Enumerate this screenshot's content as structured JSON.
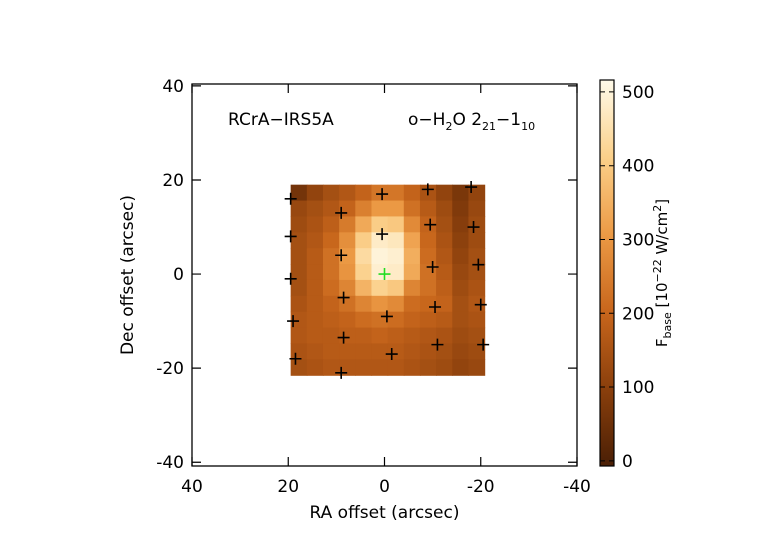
{
  "chart_data": {
    "type": "heatmap",
    "object_label": "RCrA−IRS5A",
    "line_label": {
      "species": "o−H",
      "sub1": "2",
      "mid": "O 2",
      "sub2": "21",
      "dash": "−1",
      "sub3": "10"
    },
    "xlabel": "RA offset (arcsec)",
    "ylabel": "Dec offset (arcsec)",
    "colorbar_label": {
      "main": "F",
      "sub": "base",
      "text1": " [10",
      "sup1": "−22",
      "text2": " W/cm",
      "sup2": "2",
      "text3": "]"
    },
    "xlim": [
      40,
      -40
    ],
    "ylim": [
      -40.8,
      40.4
    ],
    "xticks": [
      40,
      20,
      0,
      -20,
      -40
    ],
    "yticks": [
      -40,
      -20,
      0,
      20,
      40
    ],
    "clim": [
      -7,
      508
    ],
    "cticks": [
      0,
      100,
      200,
      300,
      400,
      500
    ],
    "colormap": [
      "#4a1f05",
      "#8a3f0c",
      "#c8661c",
      "#ec9a45",
      "#fbd08a",
      "#fffbea"
    ],
    "extent_x": [
      19.5,
      -20.8
    ],
    "extent_y": [
      19,
      -21.5
    ],
    "z": [
      [
        60,
        110,
        140,
        160,
        190,
        230,
        230,
        190,
        150,
        110,
        70,
        110
      ],
      [
        120,
        140,
        160,
        190,
        250,
        300,
        300,
        220,
        170,
        130,
        80,
        120
      ],
      [
        130,
        150,
        180,
        240,
        330,
        400,
        390,
        270,
        190,
        140,
        90,
        130
      ],
      [
        140,
        160,
        200,
        280,
        400,
        470,
        460,
        320,
        200,
        150,
        100,
        130
      ],
      [
        140,
        170,
        220,
        300,
        430,
        490,
        480,
        340,
        210,
        160,
        110,
        140
      ],
      [
        140,
        170,
        220,
        290,
        410,
        480,
        470,
        330,
        220,
        170,
        120,
        140
      ],
      [
        140,
        170,
        210,
        260,
        350,
        410,
        390,
        260,
        220,
        180,
        130,
        150
      ],
      [
        150,
        170,
        190,
        220,
        260,
        290,
        270,
        210,
        200,
        190,
        140,
        160
      ],
      [
        160,
        170,
        180,
        190,
        210,
        220,
        210,
        190,
        180,
        170,
        140,
        150
      ],
      [
        160,
        170,
        170,
        180,
        180,
        190,
        180,
        170,
        160,
        150,
        130,
        140
      ],
      [
        150,
        160,
        170,
        170,
        170,
        170,
        170,
        160,
        150,
        140,
        120,
        130
      ],
      [
        140,
        150,
        160,
        160,
        160,
        160,
        160,
        150,
        140,
        130,
        110,
        120
      ]
    ],
    "spaxels": {
      "x": [
        19.5,
        19.5,
        19.5,
        19,
        18.5,
        9,
        9,
        8.5,
        8.5,
        9,
        0.5,
        0.5,
        0,
        -0.5,
        -1.5,
        -9,
        -9.5,
        -10,
        -10.5,
        -11,
        -18,
        -18.5,
        -19.5,
        -20,
        -20.5
      ],
      "y": [
        16,
        8,
        -1,
        -10,
        -18,
        13,
        4,
        -5,
        -13.5,
        -21,
        17,
        8.5,
        0,
        -9,
        -17,
        18,
        10.5,
        1.5,
        -7,
        -15,
        18.5,
        10,
        2,
        -6.5,
        -15
      ],
      "color": "#000000",
      "highlight_index": 12,
      "highlight_color": "#22dd22"
    }
  }
}
